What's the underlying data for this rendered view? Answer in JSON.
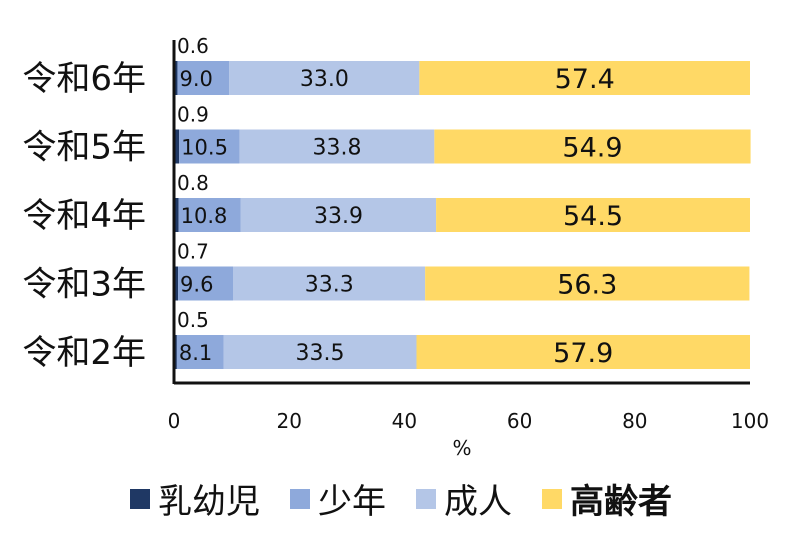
{
  "chart_data": {
    "type": "bar",
    "orientation": "horizontal",
    "stacked": true,
    "categories": [
      "令和6年",
      "令和5年",
      "令和4年",
      "令和3年",
      "令和2年"
    ],
    "series": [
      {
        "name": "乳幼児",
        "color": "#1F3864",
        "values": [
          0.6,
          0.9,
          0.8,
          0.7,
          0.5
        ]
      },
      {
        "name": "少年",
        "color": "#8EA9DB",
        "values": [
          9.0,
          10.5,
          10.8,
          9.6,
          8.1
        ]
      },
      {
        "name": "成人",
        "color": "#B4C6E7",
        "values": [
          33.0,
          33.8,
          33.9,
          33.3,
          33.5
        ]
      },
      {
        "name": "高齢者",
        "color": "#FFD966",
        "values": [
          57.4,
          54.9,
          54.5,
          56.3,
          57.9
        ]
      }
    ],
    "xlim": [
      0,
      100
    ],
    "xticks": [
      0,
      20,
      40,
      60,
      80,
      100
    ],
    "xlabel": "%",
    "legend_position": "bottom",
    "grid": false
  }
}
